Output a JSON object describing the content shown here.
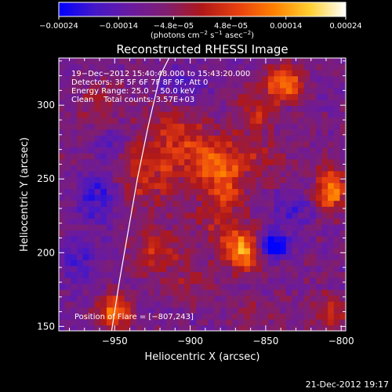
{
  "chart_data": {
    "type": "heatmap",
    "title": "Reconstructed RHESSI Image",
    "xlabel": "Heliocentric X (arcsec)",
    "ylabel": "Heliocentric Y (arcsec)",
    "xlim": [
      -987,
      -797
    ],
    "ylim": [
      147,
      332
    ],
    "x_ticks": [
      -950,
      -900,
      -850,
      -800
    ],
    "x_tick_labels": [
      "−950",
      "−900",
      "−850",
      "−800"
    ],
    "y_ticks": [
      150,
      200,
      250,
      300
    ],
    "y_tick_labels": [
      "150",
      "200",
      "250",
      "300"
    ],
    "grid": false,
    "colorbar": {
      "position": "top",
      "range": [
        -0.00024,
        0.00024
      ],
      "tick_values": [
        -0.00024,
        -0.00014,
        -4.8e-05,
        4.8e-05,
        0.00014,
        0.00024
      ],
      "tick_labels": [
        "−0.00024",
        "−0.00014",
        "−4.8e−05",
        "4.8e−05",
        "0.00014",
        "0.00024"
      ],
      "units_text": "(photons cm",
      "units_text_2": " s",
      "units_text_3": " asec",
      "units_text_4": ")",
      "units_exp_1": "−2",
      "units_exp_2": "−1",
      "units_exp_3": "−2"
    },
    "colormap": [
      "#0000ff",
      "#4418c8",
      "#6a1aa0",
      "#801e70",
      "#b01818",
      "#e84010",
      "#ff8000",
      "#ffd030",
      "#ffffff"
    ],
    "annotations": [
      "19−Dec−2012 15:40:48.000 to 15:43:20.000",
      "Detectors: 3F 5F 6F 7F 8F 9F, Att 0",
      "Energy Range: 25.0 − 50.0 keV",
      "Clean    Total counts: 3.57E+03"
    ],
    "flare_label": "Position of Flare = [−807,243]",
    "flare_position": [
      -807,
      243
    ],
    "limb_curve": {
      "x": [
        -952,
        -947,
        -941,
        -935,
        -928,
        -920,
        -914
      ],
      "y": [
        147,
        180,
        215,
        250,
        285,
        320,
        332
      ]
    },
    "sources": [
      {
        "x": -930,
        "y": 255,
        "peak": 0.0001,
        "sx": 22,
        "sy": 20
      },
      {
        "x": -912,
        "y": 285,
        "peak": 6e-05,
        "sx": 12,
        "sy": 14
      },
      {
        "x": -895,
        "y": 270,
        "peak": 7e-05,
        "sx": 14,
        "sy": 12
      },
      {
        "x": -880,
        "y": 258,
        "peak": 0.00013,
        "sx": 12,
        "sy": 12
      },
      {
        "x": -875,
        "y": 240,
        "peak": 9e-05,
        "sx": 10,
        "sy": 9
      },
      {
        "x": -857,
        "y": 296,
        "peak": 0.0001,
        "sx": 10,
        "sy": 10
      },
      {
        "x": -838,
        "y": 315,
        "peak": 0.0002,
        "sx": 9,
        "sy": 8
      },
      {
        "x": -850,
        "y": 265,
        "peak": 7e-05,
        "sx": 14,
        "sy": 10
      },
      {
        "x": -807,
        "y": 243,
        "peak": 0.00022,
        "sx": 7,
        "sy": 10
      },
      {
        "x": -865,
        "y": 202,
        "peak": 0.00024,
        "sx": 9,
        "sy": 9
      },
      {
        "x": -882,
        "y": 218,
        "peak": 8e-05,
        "sx": 10,
        "sy": 9
      },
      {
        "x": -922,
        "y": 200,
        "peak": 0.0001,
        "sx": 14,
        "sy": 10
      },
      {
        "x": -898,
        "y": 180,
        "peak": 6e-05,
        "sx": 10,
        "sy": 10
      },
      {
        "x": -950,
        "y": 160,
        "peak": 0.0002,
        "sx": 7,
        "sy": 8
      },
      {
        "x": -808,
        "y": 160,
        "peak": 0.00011,
        "sx": 9,
        "sy": 8
      },
      {
        "x": -858,
        "y": 158,
        "peak": 5e-05,
        "sx": 12,
        "sy": 8
      },
      {
        "x": -960,
        "y": 300,
        "peak": 6e-05,
        "sx": 10,
        "sy": 12
      }
    ],
    "negative_sources": [
      {
        "x": -846,
        "y": 205,
        "peak": -0.00022,
        "sx": 7,
        "sy": 6
      },
      {
        "x": -960,
        "y": 240,
        "peak": -0.00012,
        "sx": 10,
        "sy": 14
      },
      {
        "x": -952,
        "y": 275,
        "peak": -0.0001,
        "sx": 8,
        "sy": 8
      },
      {
        "x": -975,
        "y": 195,
        "peak": -9e-05,
        "sx": 8,
        "sy": 10
      },
      {
        "x": -832,
        "y": 230,
        "peak": -8e-05,
        "sx": 8,
        "sy": 8
      },
      {
        "x": -905,
        "y": 315,
        "peak": -8e-05,
        "sx": 10,
        "sy": 8
      }
    ]
  },
  "footer": {
    "timestamp": "21-Dec-2012 19:17"
  }
}
